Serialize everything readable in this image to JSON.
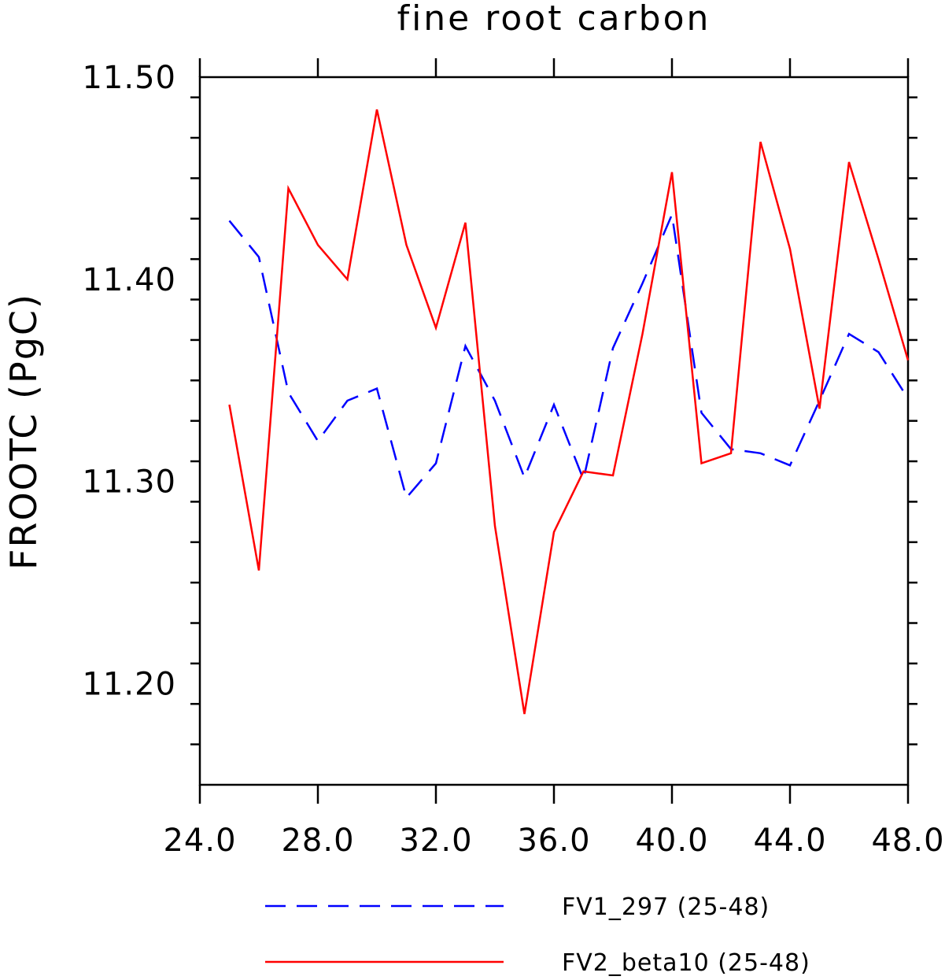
{
  "chart_data": {
    "type": "line",
    "title": "fine root carbon",
    "xlabel": "",
    "ylabel": "FROOTC  (PgC)",
    "xlim": [
      24,
      48
    ],
    "ylim": [
      11.15,
      11.5
    ],
    "x_ticks": [
      24,
      28,
      32,
      36,
      40,
      44,
      48
    ],
    "x_tick_labels": [
      "24.0",
      "28.0",
      "32.0",
      "36.0",
      "40.0",
      "44.0",
      "48.0"
    ],
    "y_ticks": [
      11.2,
      11.3,
      11.4,
      11.5
    ],
    "y_tick_labels": [
      "11.20",
      "11.30",
      "11.40",
      "11.50"
    ],
    "grid": false,
    "legend_position": "bottom",
    "x": [
      25,
      26,
      27,
      28,
      29,
      30,
      31,
      32,
      33,
      34,
      35,
      36,
      37,
      38,
      39,
      40,
      41,
      42,
      43,
      44,
      45,
      46,
      47,
      48
    ],
    "series": [
      {
        "name": "FV1_297 (25-48)",
        "color": "#0000ff",
        "style": "dashed",
        "values": [
          11.429,
          11.411,
          11.344,
          11.32,
          11.34,
          11.346,
          11.292,
          11.309,
          11.367,
          11.34,
          11.302,
          11.338,
          11.301,
          11.366,
          11.398,
          11.432,
          11.334,
          11.316,
          11.314,
          11.308,
          11.34,
          11.373,
          11.364,
          11.341
        ]
      },
      {
        "name": "FV2_beta10 (25-48)",
        "color": "#ff0000",
        "style": "solid",
        "values": [
          11.338,
          11.256,
          11.445,
          11.417,
          11.4,
          11.484,
          11.417,
          11.376,
          11.428,
          11.278,
          11.185,
          11.275,
          11.305,
          11.303,
          11.373,
          11.453,
          11.309,
          11.314,
          11.468,
          11.415,
          11.336,
          11.458,
          11.41,
          11.36
        ]
      }
    ]
  }
}
